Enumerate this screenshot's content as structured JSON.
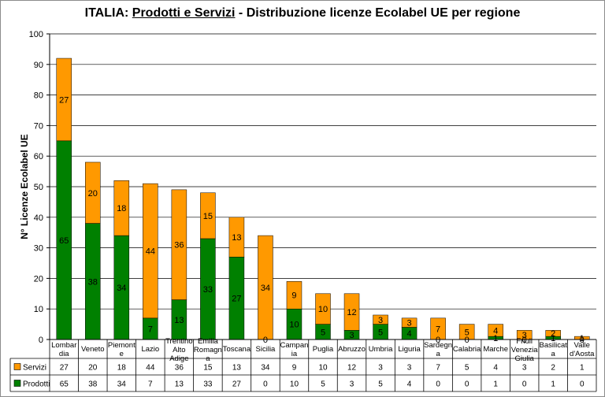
{
  "title": {
    "prefix": "ITALIA: ",
    "emphasis": "Prodotti e Servizi",
    "suffix": " - Distribuzione licenze Ecolabel UE  per regione"
  },
  "colors": {
    "servizi": "#FF9900",
    "prodotti": "#008000",
    "axis": "#000000",
    "grid": "#000000"
  },
  "chart_data": {
    "type": "bar",
    "stacked": true,
    "title": "ITALIA: Prodotti e Servizi - Distribuzione licenze Ecolabel UE  per regione",
    "ylabel": "N° Licenze Ecolabel  UE",
    "xlabel": "",
    "ylim": [
      0,
      100
    ],
    "yticks": [
      0,
      10,
      20,
      30,
      40,
      50,
      60,
      70,
      80,
      90,
      100
    ],
    "grid": true,
    "legend": "data-table-bottom",
    "categories": [
      [
        "Lombar",
        "dia"
      ],
      [
        "Veneto"
      ],
      [
        "Piemont",
        "e"
      ],
      [
        "Lazio"
      ],
      [
        "Trentino",
        "Alto",
        "Adige"
      ],
      [
        "Emilia",
        "Romagn",
        "a"
      ],
      [
        "Toscana"
      ],
      [
        "Sicilia"
      ],
      [
        "Campan",
        "ia"
      ],
      [
        "Puglia"
      ],
      [
        "Abruzzo"
      ],
      [
        "Umbria"
      ],
      [
        "Liguria"
      ],
      [
        "Sardegn",
        "a"
      ],
      [
        "Calabria"
      ],
      [
        "Marche"
      ],
      [
        "Friuli",
        "Venezia",
        "Giulia"
      ],
      [
        "Basilicat",
        "a"
      ],
      [
        "Valle",
        "d'Aosta"
      ]
    ],
    "series": [
      {
        "name": "Prodotti",
        "values": [
          65,
          38,
          34,
          7,
          13,
          33,
          27,
          0,
          10,
          5,
          3,
          5,
          4,
          0,
          0,
          1,
          0,
          1,
          0
        ]
      },
      {
        "name": "Servizi",
        "values": [
          27,
          20,
          18,
          44,
          36,
          15,
          13,
          34,
          9,
          10,
          12,
          3,
          3,
          7,
          5,
          4,
          3,
          2,
          1
        ]
      }
    ]
  }
}
